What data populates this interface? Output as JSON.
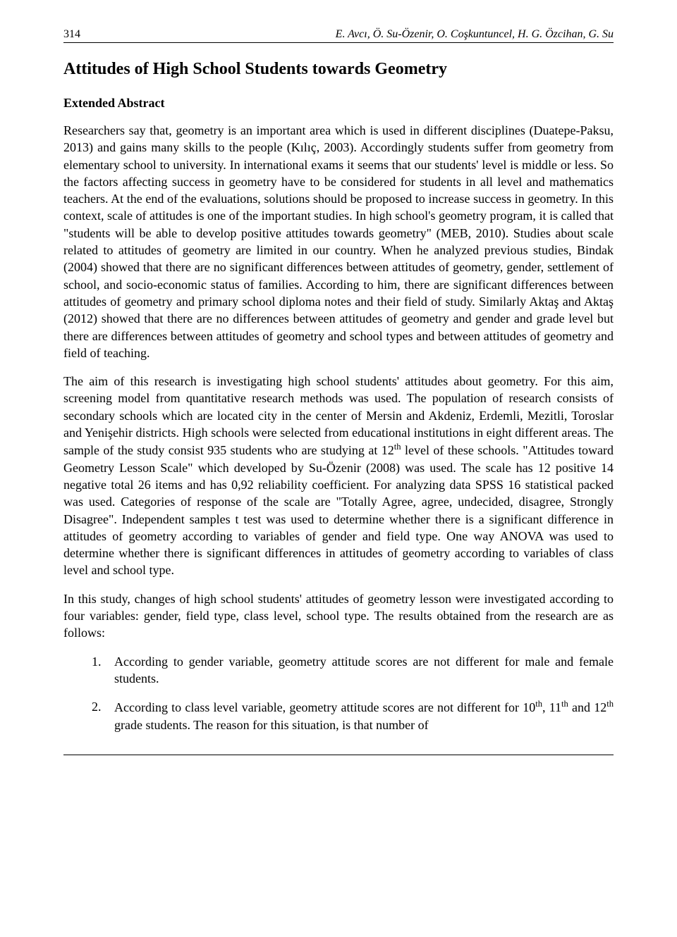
{
  "header": {
    "page_number": "314",
    "authors": "E. Avcı, Ö. Su-Özenir, O. Coşkuntuncel, H. G. Özcihan, G. Su"
  },
  "title": "Attitudes of High School Students towards Geometry",
  "abstract_label": "Extended Abstract",
  "paragraphs": {
    "p1": "Researchers say that, geometry is an important area which is used in different disciplines (Duatepe-Paksu, 2013) and gains many skills to the people (Kılıç, 2003). Accordingly students suffer from geometry from elementary school to university. In international exams it seems that our students' level is middle or less. So the factors affecting success in geometry have to be considered for students in all level and mathematics teachers. At the end of the evaluations, solutions should be proposed to increase success in geometry. In this context, scale of attitudes is one of the important studies. In high school's geometry program, it is called that \"students will be able to develop positive attitudes towards geometry\" (MEB, 2010). Studies about scale related to attitudes of geometry are limited in our country. When he analyzed previous studies, Bindak (2004) showed that there are no significant differences between attitudes of geometry, gender, settlement of school, and socio-economic status of families. According to him, there are significant differences between attitudes of geometry and primary school diploma notes and their field of study. Similarly Aktaş and Aktaş (2012) showed that there are no differences between attitudes of geometry and gender and grade level but there are differences between attitudes of geometry and school types and between attitudes of geometry and field of teaching.",
    "p2_part1": "The aim of this research is investigating high school students' attitudes about geometry. For this aim, screening model from quantitative research methods was used. The population of research consists of secondary schools which are located city in the center of Mersin and Akdeniz, Erdemli, Mezitli, Toroslar and Yenişehir districts. High schools were selected from educational institutions in eight different areas. The sample of the study consist 935 students who are studying at 12",
    "p2_sup1": "th",
    "p2_part2": " level of these schools. \"Attitudes toward Geometry Lesson Scale\" which developed by Su-Özenir (2008) was used. The scale has 12 positive 14 negative total 26 items and has 0,92 reliability coefficient. For analyzing data SPSS 16 statistical packed was used. Categories of response of the scale are \"Totally Agree, agree, undecided, disagree, Strongly Disagree\". Independent samples t test was used to determine whether there is a significant difference in attitudes of geometry according to variables of gender and field type. One way ANOVA was used to determine whether there is significant differences in attitudes of geometry according to variables of class level and school type.",
    "p3": "In this study, changes of high school students' attitudes of geometry lesson were investigated according to four variables: gender, field type, class level, school type. The results obtained from the research are as follows:"
  },
  "list": {
    "item1": {
      "marker": "1.",
      "text": "According to gender variable, geometry attitude scores are not different for male and female students."
    },
    "item2": {
      "marker": "2.",
      "text_part1": "According to class level variable, geometry attitude scores are not different for 10",
      "sup1": "th",
      "text_part2": ", 11",
      "sup2": "th",
      "text_part3": " and 12",
      "sup3": "th",
      "text_part4": " grade students. The reason for this situation, is that number of"
    }
  }
}
